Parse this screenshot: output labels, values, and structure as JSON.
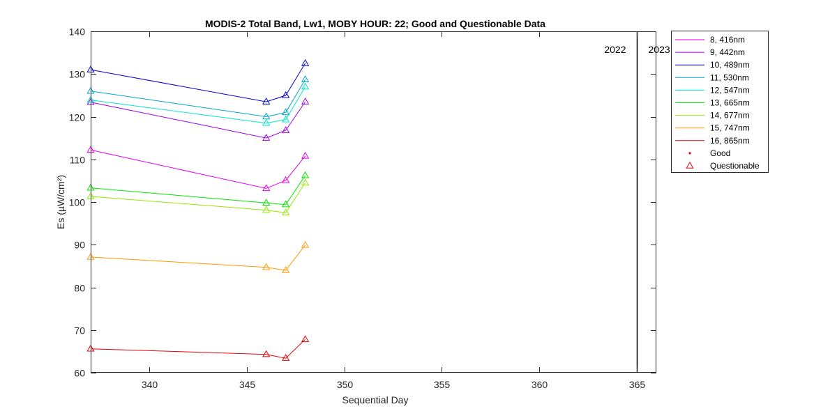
{
  "chart_data": {
    "type": "line",
    "title": "MODIS-2 Total Band,  Lw1, MOBY HOUR: 22;  Good and Questionable Data",
    "xlabel": "Sequential Day",
    "ylabel": "Es (µW/cm²)",
    "xlim": [
      337,
      366
    ],
    "ylim": [
      60,
      140
    ],
    "xticks": [
      340,
      345,
      350,
      355,
      360,
      365
    ],
    "yticks": [
      60,
      70,
      80,
      90,
      100,
      110,
      120,
      130,
      140
    ],
    "grid": false,
    "legend_position": "outside-right",
    "x": [
      337,
      346,
      347,
      348
    ],
    "series": [
      {
        "name": "8, 416nm",
        "color": "#e600e6",
        "values": [
          112.2,
          103.2,
          105.1,
          110.8
        ]
      },
      {
        "name": "9, 442nm",
        "color": "#9900e6",
        "values": [
          123.4,
          115.0,
          116.8,
          123.5
        ]
      },
      {
        "name": "10, 489nm",
        "color": "#0000cc",
        "values": [
          131.0,
          123.5,
          125.0,
          132.5
        ]
      },
      {
        "name": "11, 530nm",
        "color": "#00a6cc",
        "values": [
          126.0,
          120.0,
          121.0,
          128.7
        ]
      },
      {
        "name": "12, 547nm",
        "color": "#00e6cc",
        "values": [
          123.9,
          118.5,
          119.3,
          127.0
        ]
      },
      {
        "name": "13, 665nm",
        "color": "#00e600",
        "values": [
          103.3,
          99.8,
          99.4,
          106.2
        ]
      },
      {
        "name": "14, 677nm",
        "color": "#99e600",
        "values": [
          101.3,
          98.1,
          97.5,
          104.5
        ]
      },
      {
        "name": "15, 747nm",
        "color": "#ff9900",
        "values": [
          87.1,
          84.7,
          84.0,
          89.9
        ]
      },
      {
        "name": "16, 865nm",
        "color": "#e60000",
        "values": [
          65.6,
          64.3,
          63.4,
          67.8
        ]
      }
    ],
    "marker_legend": [
      {
        "label": "Good",
        "marker": "point",
        "color": "#e60000"
      },
      {
        "label": "Questionable",
        "marker": "triangle",
        "color": "#e60000"
      }
    ],
    "year_divider": {
      "x": 365,
      "left_label": "2022",
      "right_label": "2023"
    }
  }
}
